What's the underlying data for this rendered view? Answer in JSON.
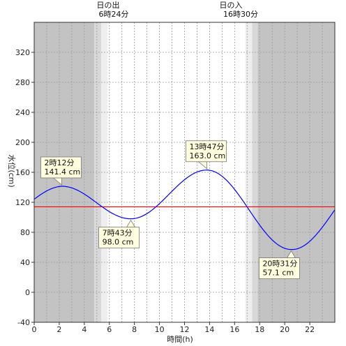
{
  "chart_data": {
    "type": "line",
    "xlabel": "時間(h)",
    "ylabel": "水位(cm)",
    "xlim": [
      0,
      24
    ],
    "ylim": [
      -40,
      360
    ],
    "x_ticks": [
      0,
      2,
      4,
      6,
      8,
      10,
      12,
      14,
      16,
      18,
      20,
      22
    ],
    "y_ticks": [
      -40,
      0,
      40,
      80,
      120,
      160,
      200,
      240,
      280,
      320
    ],
    "grid": true,
    "reference_line": {
      "y": 114,
      "color": "#ff0000"
    },
    "extremes": [
      {
        "time": "2時12分",
        "value_text": "141.4 cm",
        "x": 2.2,
        "y": 141.4,
        "kind": "high"
      },
      {
        "time": "7時43分",
        "value_text": "98.0 cm",
        "x": 7.717,
        "y": 98.0,
        "kind": "low"
      },
      {
        "time": "13時47分",
        "value_text": "163.0 cm",
        "x": 13.783,
        "y": 163.0,
        "kind": "high"
      },
      {
        "time": "20時31分",
        "value_text": "57.1 cm",
        "x": 20.517,
        "y": 57.1,
        "kind": "low"
      }
    ],
    "series": [
      {
        "color": "#0000ff",
        "start": {
          "x": 0,
          "y": 124
        },
        "end": {
          "x": 24,
          "y": 110
        }
      }
    ],
    "sunrise": {
      "label": "日の出",
      "time": "6時24分",
      "x": 6.4
    },
    "sunset": {
      "label": "日の入",
      "time": "16時30分",
      "x": 16.5
    },
    "colors": {
      "night": "#c3c3c3",
      "twilight_dark": "#d8d8d8",
      "twilight_light": "#eeeeee",
      "day": "#ffffff",
      "callout_fill": "#ffffe0"
    }
  }
}
